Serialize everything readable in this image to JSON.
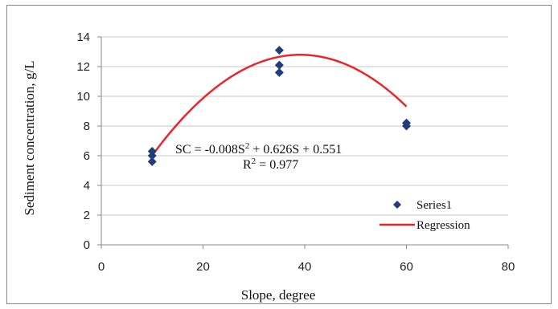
{
  "chart_data": {
    "type": "scatter",
    "xlabel": "Slope, degree",
    "ylabel": "Sediment concentration, g/L",
    "xlim": [
      0,
      80
    ],
    "ylim": [
      0,
      14
    ],
    "xticks": [
      0,
      20,
      40,
      60,
      80
    ],
    "yticks": [
      0,
      2,
      4,
      6,
      8,
      10,
      12,
      14
    ],
    "grid": "horizontal",
    "legend_position": "bottom-right",
    "series": [
      {
        "name": "Series1",
        "kind": "scatter",
        "marker": "diamond",
        "color": "#1f3d7a",
        "x": [
          10,
          10,
          10,
          35,
          35,
          35,
          60,
          60
        ],
        "y": [
          5.6,
          6.0,
          6.3,
          11.6,
          12.1,
          13.1,
          8.0,
          8.2
        ]
      },
      {
        "name": "Regression",
        "kind": "line",
        "color": "#e8262b",
        "x_range": [
          10,
          60
        ],
        "coefficients": {
          "a": -0.008,
          "b": 0.626,
          "c": 0.551
        }
      }
    ],
    "annotations": {
      "equation_main": "SC = -0.008S",
      "equation_exp": "2",
      "equation_rest": " + 0.626S + 0.551",
      "r2_main": "R",
      "r2_exp": "2",
      "r2_rest": " = 0.977"
    }
  }
}
